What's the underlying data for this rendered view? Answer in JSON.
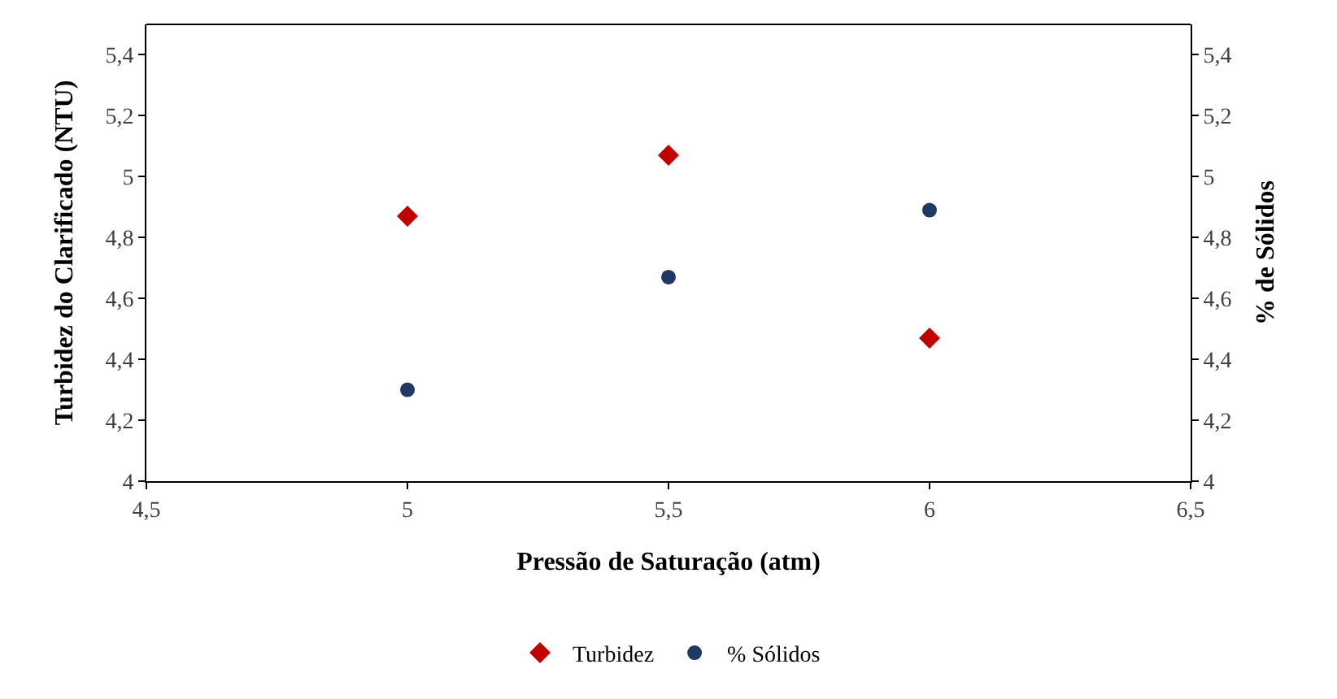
{
  "chart_data": {
    "type": "scatter",
    "xlabel": "Pressão de Saturação (atm)",
    "ylabel": "Turbidez do Clarificado (NTU)",
    "y2label": "% de Sólidos",
    "x": [
      5,
      5.5,
      6
    ],
    "series": [
      {
        "name": "Turbidez",
        "color": "#c00000",
        "values": [
          4.87,
          5.07,
          4.47
        ],
        "marker": "diamond"
      },
      {
        "name": "% Sólidos",
        "color": "#1f3864",
        "values": [
          4.3,
          4.67,
          4.89
        ],
        "marker": "circle",
        "axis": "y2"
      }
    ],
    "xlim": [
      4.5,
      6.5
    ],
    "xticks": [
      {
        "value": 4.5,
        "label": "4,5"
      },
      5,
      {
        "value": 5.5,
        "label": "5,5"
      },
      6,
      {
        "value": 6.5,
        "label": "6,5"
      }
    ],
    "ylim": [
      4,
      5.5
    ],
    "yticks": [
      4,
      {
        "value": 4.2,
        "label": "4,2"
      },
      {
        "value": 4.4,
        "label": "4,4"
      },
      {
        "value": 4.6,
        "label": "4,6"
      },
      {
        "value": 4.8,
        "label": "4,8"
      },
      5,
      {
        "value": 5.2,
        "label": "5,2"
      },
      {
        "value": 5.4,
        "label": "5,4"
      }
    ],
    "y2lim": [
      4,
      5.5
    ],
    "y2ticks": [
      4,
      {
        "value": 4.2,
        "label": "4,2"
      },
      {
        "value": 4.4,
        "label": "4,4"
      },
      {
        "value": 4.6,
        "label": "4,6"
      },
      {
        "value": 4.8,
        "label": "4,8"
      },
      5,
      {
        "value": 5.2,
        "label": "5,2"
      },
      {
        "value": 5.4,
        "label": "5,4"
      }
    ],
    "legend": "bottom"
  }
}
